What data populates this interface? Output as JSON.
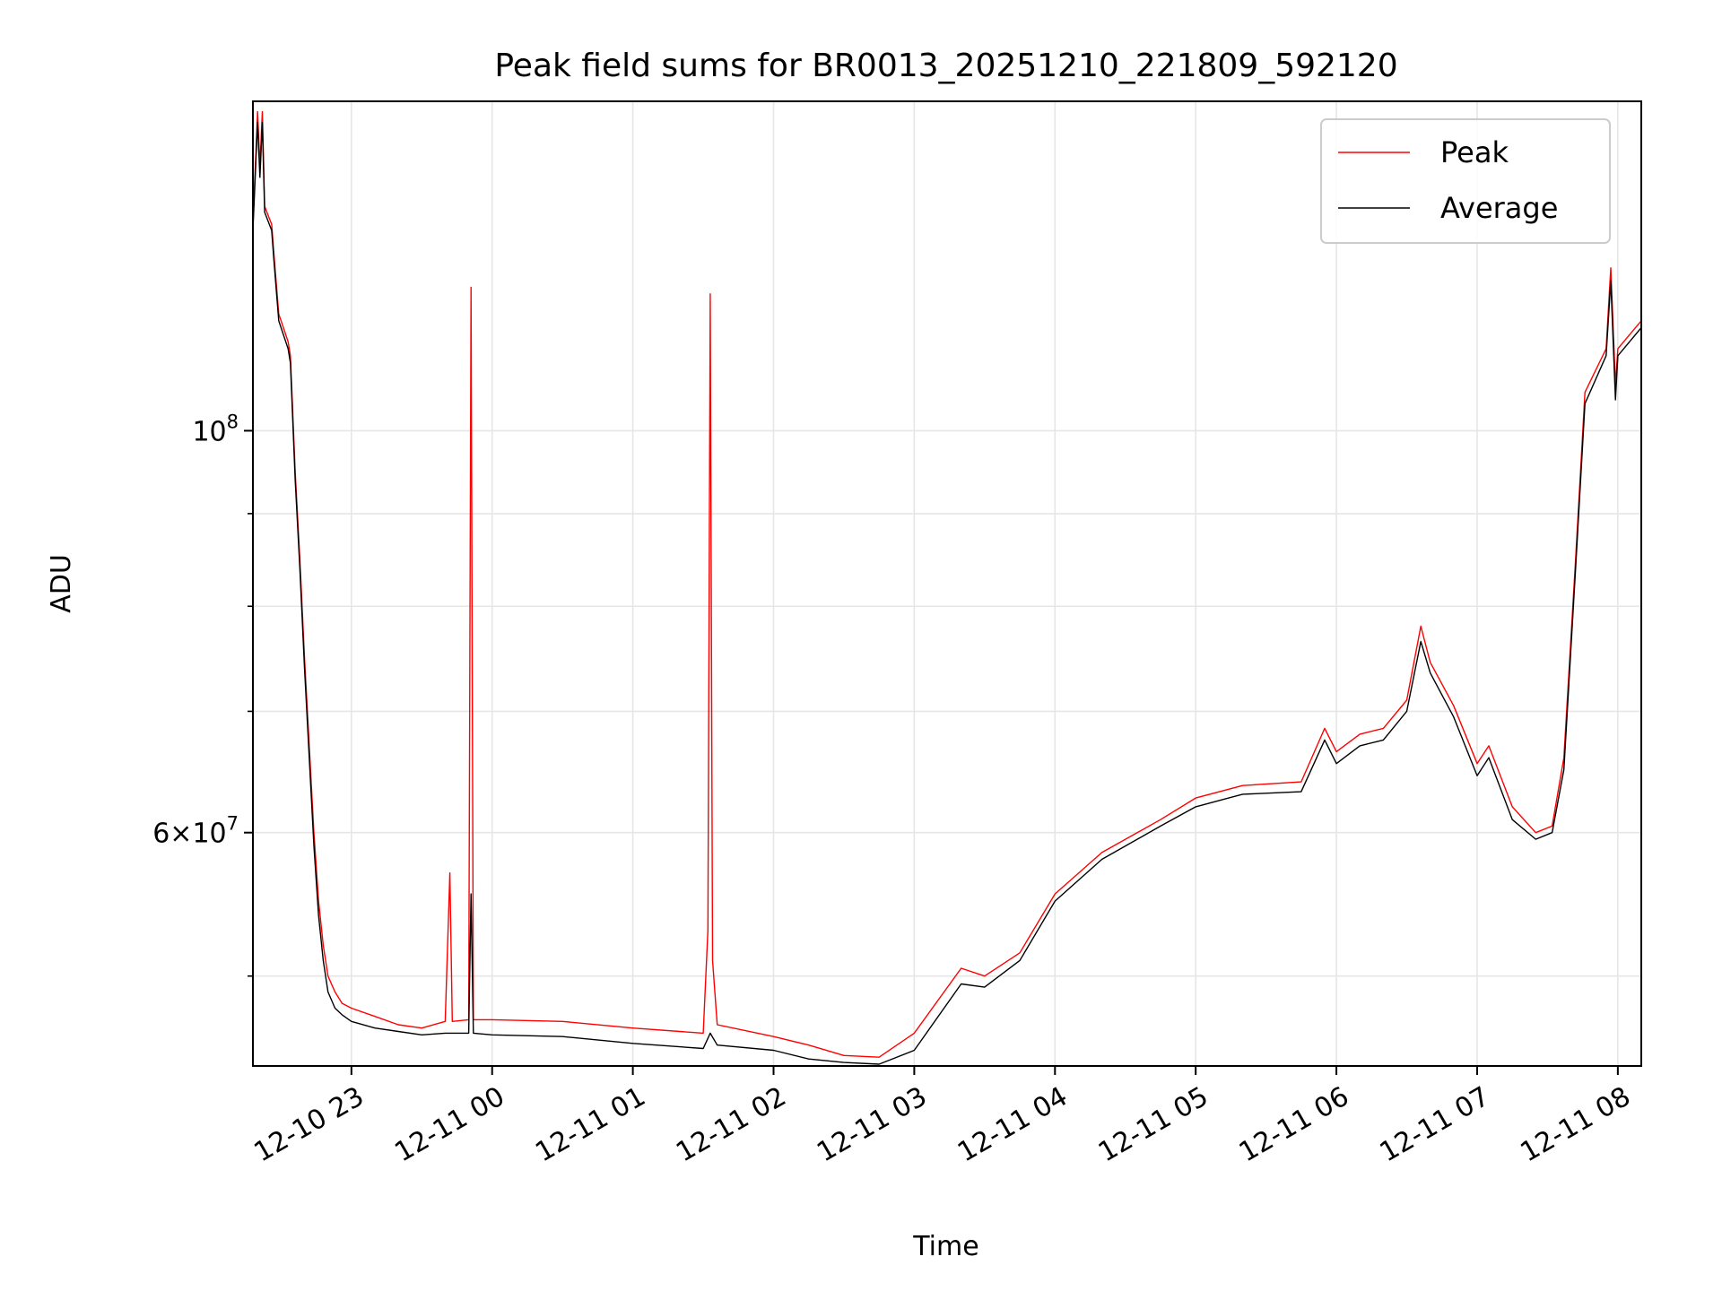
{
  "chart_data": {
    "type": "line",
    "title": "Peak field sums for BR0013_20251210_221809_592120",
    "xlabel": "Time",
    "ylabel": "ADU",
    "yscale": "log",
    "xlim": [
      "2025-12-10 22:18",
      "2025-12-11 08:10"
    ],
    "ylim": [
      44600000,
      152000000
    ],
    "grid": true,
    "legend_position": "top-right",
    "x_tick_labels": [
      "12-10 23",
      "12-11 00",
      "12-11 01",
      "12-11 02",
      "12-11 03",
      "12-11 04",
      "12-11 05",
      "12-11 06",
      "12-11 07",
      "12-11 08"
    ],
    "x_ticks": [
      "2025-12-10 23:00",
      "2025-12-11 00:00",
      "2025-12-11 01:00",
      "2025-12-11 02:00",
      "2025-12-11 03:00",
      "2025-12-11 04:00",
      "2025-12-11 05:00",
      "2025-12-11 06:00",
      "2025-12-11 07:00",
      "2025-12-11 08:00"
    ],
    "y_major_ticks": [
      {
        "value": 100000000,
        "base": "10",
        "exp": "8"
      },
      {
        "value": 60000000,
        "base": "6×10",
        "exp": "7"
      }
    ],
    "y_minor_ticks": [
      50000000,
      70000000,
      80000000,
      90000000
    ],
    "series": [
      {
        "name": "Peak",
        "color": "#ff0000",
        "points": [
          [
            "2025-12-10 22:18",
            130000000
          ],
          [
            "2025-12-10 22:20",
            150000000
          ],
          [
            "2025-12-10 22:21",
            140000000
          ],
          [
            "2025-12-10 22:22",
            150000000
          ],
          [
            "2025-12-10 22:23",
            133000000
          ],
          [
            "2025-12-10 22:26",
            130000000
          ],
          [
            "2025-12-10 22:27",
            125000000
          ],
          [
            "2025-12-10 22:29",
            116000000
          ],
          [
            "2025-12-10 22:33",
            112000000
          ],
          [
            "2025-12-10 22:34",
            110000000
          ],
          [
            "2025-12-10 22:36",
            95000000
          ],
          [
            "2025-12-10 22:38",
            85000000
          ],
          [
            "2025-12-10 22:40",
            75000000
          ],
          [
            "2025-12-10 22:42",
            67000000
          ],
          [
            "2025-12-10 22:44",
            60000000
          ],
          [
            "2025-12-10 22:46",
            55000000
          ],
          [
            "2025-12-10 22:48",
            52000000
          ],
          [
            "2025-12-10 22:50",
            50000000
          ],
          [
            "2025-12-10 22:53",
            49000000
          ],
          [
            "2025-12-10 22:56",
            48300000
          ],
          [
            "2025-12-10 23:00",
            48000000
          ],
          [
            "2025-12-10 23:10",
            47500000
          ],
          [
            "2025-12-10 23:20",
            47000000
          ],
          [
            "2025-12-10 23:30",
            46800000
          ],
          [
            "2025-12-10 23:40",
            47200000
          ],
          [
            "2025-12-10 23:42",
            57000000
          ],
          [
            "2025-12-10 23:43",
            47200000
          ],
          [
            "2025-12-10 23:50",
            47300000
          ],
          [
            "2025-12-10 23:51",
            120000000
          ],
          [
            "2025-12-10 23:52",
            47300000
          ],
          [
            "2025-12-11 00:00",
            47300000
          ],
          [
            "2025-12-11 00:30",
            47200000
          ],
          [
            "2025-12-11 01:00",
            46800000
          ],
          [
            "2025-12-11 01:30",
            46500000
          ],
          [
            "2025-12-11 01:32",
            53000000
          ],
          [
            "2025-12-11 01:33",
            119000000
          ],
          [
            "2025-12-11 01:34",
            51000000
          ],
          [
            "2025-12-11 01:36",
            47000000
          ],
          [
            "2025-12-11 02:00",
            46300000
          ],
          [
            "2025-12-11 02:15",
            45800000
          ],
          [
            "2025-12-11 02:30",
            45200000
          ],
          [
            "2025-12-11 02:45",
            45100000
          ],
          [
            "2025-12-11 03:00",
            46500000
          ],
          [
            "2025-12-11 03:20",
            50500000
          ],
          [
            "2025-12-11 03:30",
            50000000
          ],
          [
            "2025-12-11 03:45",
            51500000
          ],
          [
            "2025-12-11 04:00",
            55500000
          ],
          [
            "2025-12-11 04:20",
            58500000
          ],
          [
            "2025-12-11 04:45",
            61000000
          ],
          [
            "2025-12-11 05:00",
            62700000
          ],
          [
            "2025-12-11 05:20",
            63700000
          ],
          [
            "2025-12-11 05:45",
            64000000
          ],
          [
            "2025-12-11 05:55",
            68500000
          ],
          [
            "2025-12-11 06:00",
            66500000
          ],
          [
            "2025-12-11 06:10",
            68000000
          ],
          [
            "2025-12-11 06:20",
            68500000
          ],
          [
            "2025-12-11 06:30",
            71000000
          ],
          [
            "2025-12-11 06:36",
            78000000
          ],
          [
            "2025-12-11 06:40",
            74500000
          ],
          [
            "2025-12-11 06:50",
            70500000
          ],
          [
            "2025-12-11 07:00",
            65500000
          ],
          [
            "2025-12-11 07:05",
            67000000
          ],
          [
            "2025-12-11 07:15",
            62000000
          ],
          [
            "2025-12-11 07:25",
            60000000
          ],
          [
            "2025-12-11 07:32",
            60500000
          ],
          [
            "2025-12-11 07:37",
            66000000
          ],
          [
            "2025-12-11 07:42",
            85000000
          ],
          [
            "2025-12-11 07:46",
            105000000
          ],
          [
            "2025-12-11 07:55",
            111000000
          ],
          [
            "2025-12-11 07:57",
            123000000
          ],
          [
            "2025-12-11 07:59",
            106000000
          ],
          [
            "2025-12-11 08:00",
            111000000
          ],
          [
            "2025-12-11 08:10",
            115000000
          ]
        ]
      },
      {
        "name": "Average",
        "color": "#000000",
        "points": [
          [
            "2025-12-10 22:18",
            129000000
          ],
          [
            "2025-12-10 22:20",
            148000000
          ],
          [
            "2025-12-10 22:21",
            138000000
          ],
          [
            "2025-12-10 22:22",
            148000000
          ],
          [
            "2025-12-10 22:23",
            132000000
          ],
          [
            "2025-12-10 22:26",
            129000000
          ],
          [
            "2025-12-10 22:27",
            124000000
          ],
          [
            "2025-12-10 22:29",
            115000000
          ],
          [
            "2025-12-10 22:33",
            111000000
          ],
          [
            "2025-12-10 22:34",
            109000000
          ],
          [
            "2025-12-10 22:36",
            94000000
          ],
          [
            "2025-12-10 22:38",
            84000000
          ],
          [
            "2025-12-10 22:40",
            74000000
          ],
          [
            "2025-12-10 22:42",
            66000000
          ],
          [
            "2025-12-10 22:44",
            59000000
          ],
          [
            "2025-12-10 22:46",
            54000000
          ],
          [
            "2025-12-10 22:48",
            51000000
          ],
          [
            "2025-12-10 22:50",
            49000000
          ],
          [
            "2025-12-10 22:53",
            48000000
          ],
          [
            "2025-12-10 22:56",
            47600000
          ],
          [
            "2025-12-10 23:00",
            47200000
          ],
          [
            "2025-12-10 23:10",
            46800000
          ],
          [
            "2025-12-10 23:20",
            46600000
          ],
          [
            "2025-12-10 23:30",
            46400000
          ],
          [
            "2025-12-10 23:40",
            46500000
          ],
          [
            "2025-12-10 23:50",
            46500000
          ],
          [
            "2025-12-10 23:51",
            55500000
          ],
          [
            "2025-12-10 23:52",
            46500000
          ],
          [
            "2025-12-11 00:00",
            46400000
          ],
          [
            "2025-12-11 00:30",
            46300000
          ],
          [
            "2025-12-11 01:00",
            45900000
          ],
          [
            "2025-12-11 01:30",
            45600000
          ],
          [
            "2025-12-11 01:33",
            46500000
          ],
          [
            "2025-12-11 01:36",
            45800000
          ],
          [
            "2025-12-11 02:00",
            45500000
          ],
          [
            "2025-12-11 02:15",
            45000000
          ],
          [
            "2025-12-11 02:30",
            44800000
          ],
          [
            "2025-12-11 02:45",
            44700000
          ],
          [
            "2025-12-11 03:00",
            45500000
          ],
          [
            "2025-12-11 03:20",
            49500000
          ],
          [
            "2025-12-11 03:30",
            49300000
          ],
          [
            "2025-12-11 03:45",
            51000000
          ],
          [
            "2025-12-11 04:00",
            55000000
          ],
          [
            "2025-12-11 04:20",
            58000000
          ],
          [
            "2025-12-11 04:45",
            60500000
          ],
          [
            "2025-12-11 05:00",
            62000000
          ],
          [
            "2025-12-11 05:20",
            63000000
          ],
          [
            "2025-12-11 05:45",
            63200000
          ],
          [
            "2025-12-11 05:55",
            67500000
          ],
          [
            "2025-12-11 06:00",
            65500000
          ],
          [
            "2025-12-11 06:10",
            67000000
          ],
          [
            "2025-12-11 06:20",
            67500000
          ],
          [
            "2025-12-11 06:30",
            70000000
          ],
          [
            "2025-12-11 06:36",
            76500000
          ],
          [
            "2025-12-11 06:40",
            73500000
          ],
          [
            "2025-12-11 06:50",
            69500000
          ],
          [
            "2025-12-11 07:00",
            64500000
          ],
          [
            "2025-12-11 07:05",
            66000000
          ],
          [
            "2025-12-11 07:15",
            61000000
          ],
          [
            "2025-12-11 07:25",
            59500000
          ],
          [
            "2025-12-11 07:32",
            60000000
          ],
          [
            "2025-12-11 07:37",
            65000000
          ],
          [
            "2025-12-11 07:42",
            84000000
          ],
          [
            "2025-12-11 07:46",
            103500000
          ],
          [
            "2025-12-11 07:55",
            110000000
          ],
          [
            "2025-12-11 07:57",
            121000000
          ],
          [
            "2025-12-11 07:59",
            104000000
          ],
          [
            "2025-12-11 08:00",
            110000000
          ],
          [
            "2025-12-11 08:10",
            114000000
          ]
        ]
      }
    ]
  }
}
